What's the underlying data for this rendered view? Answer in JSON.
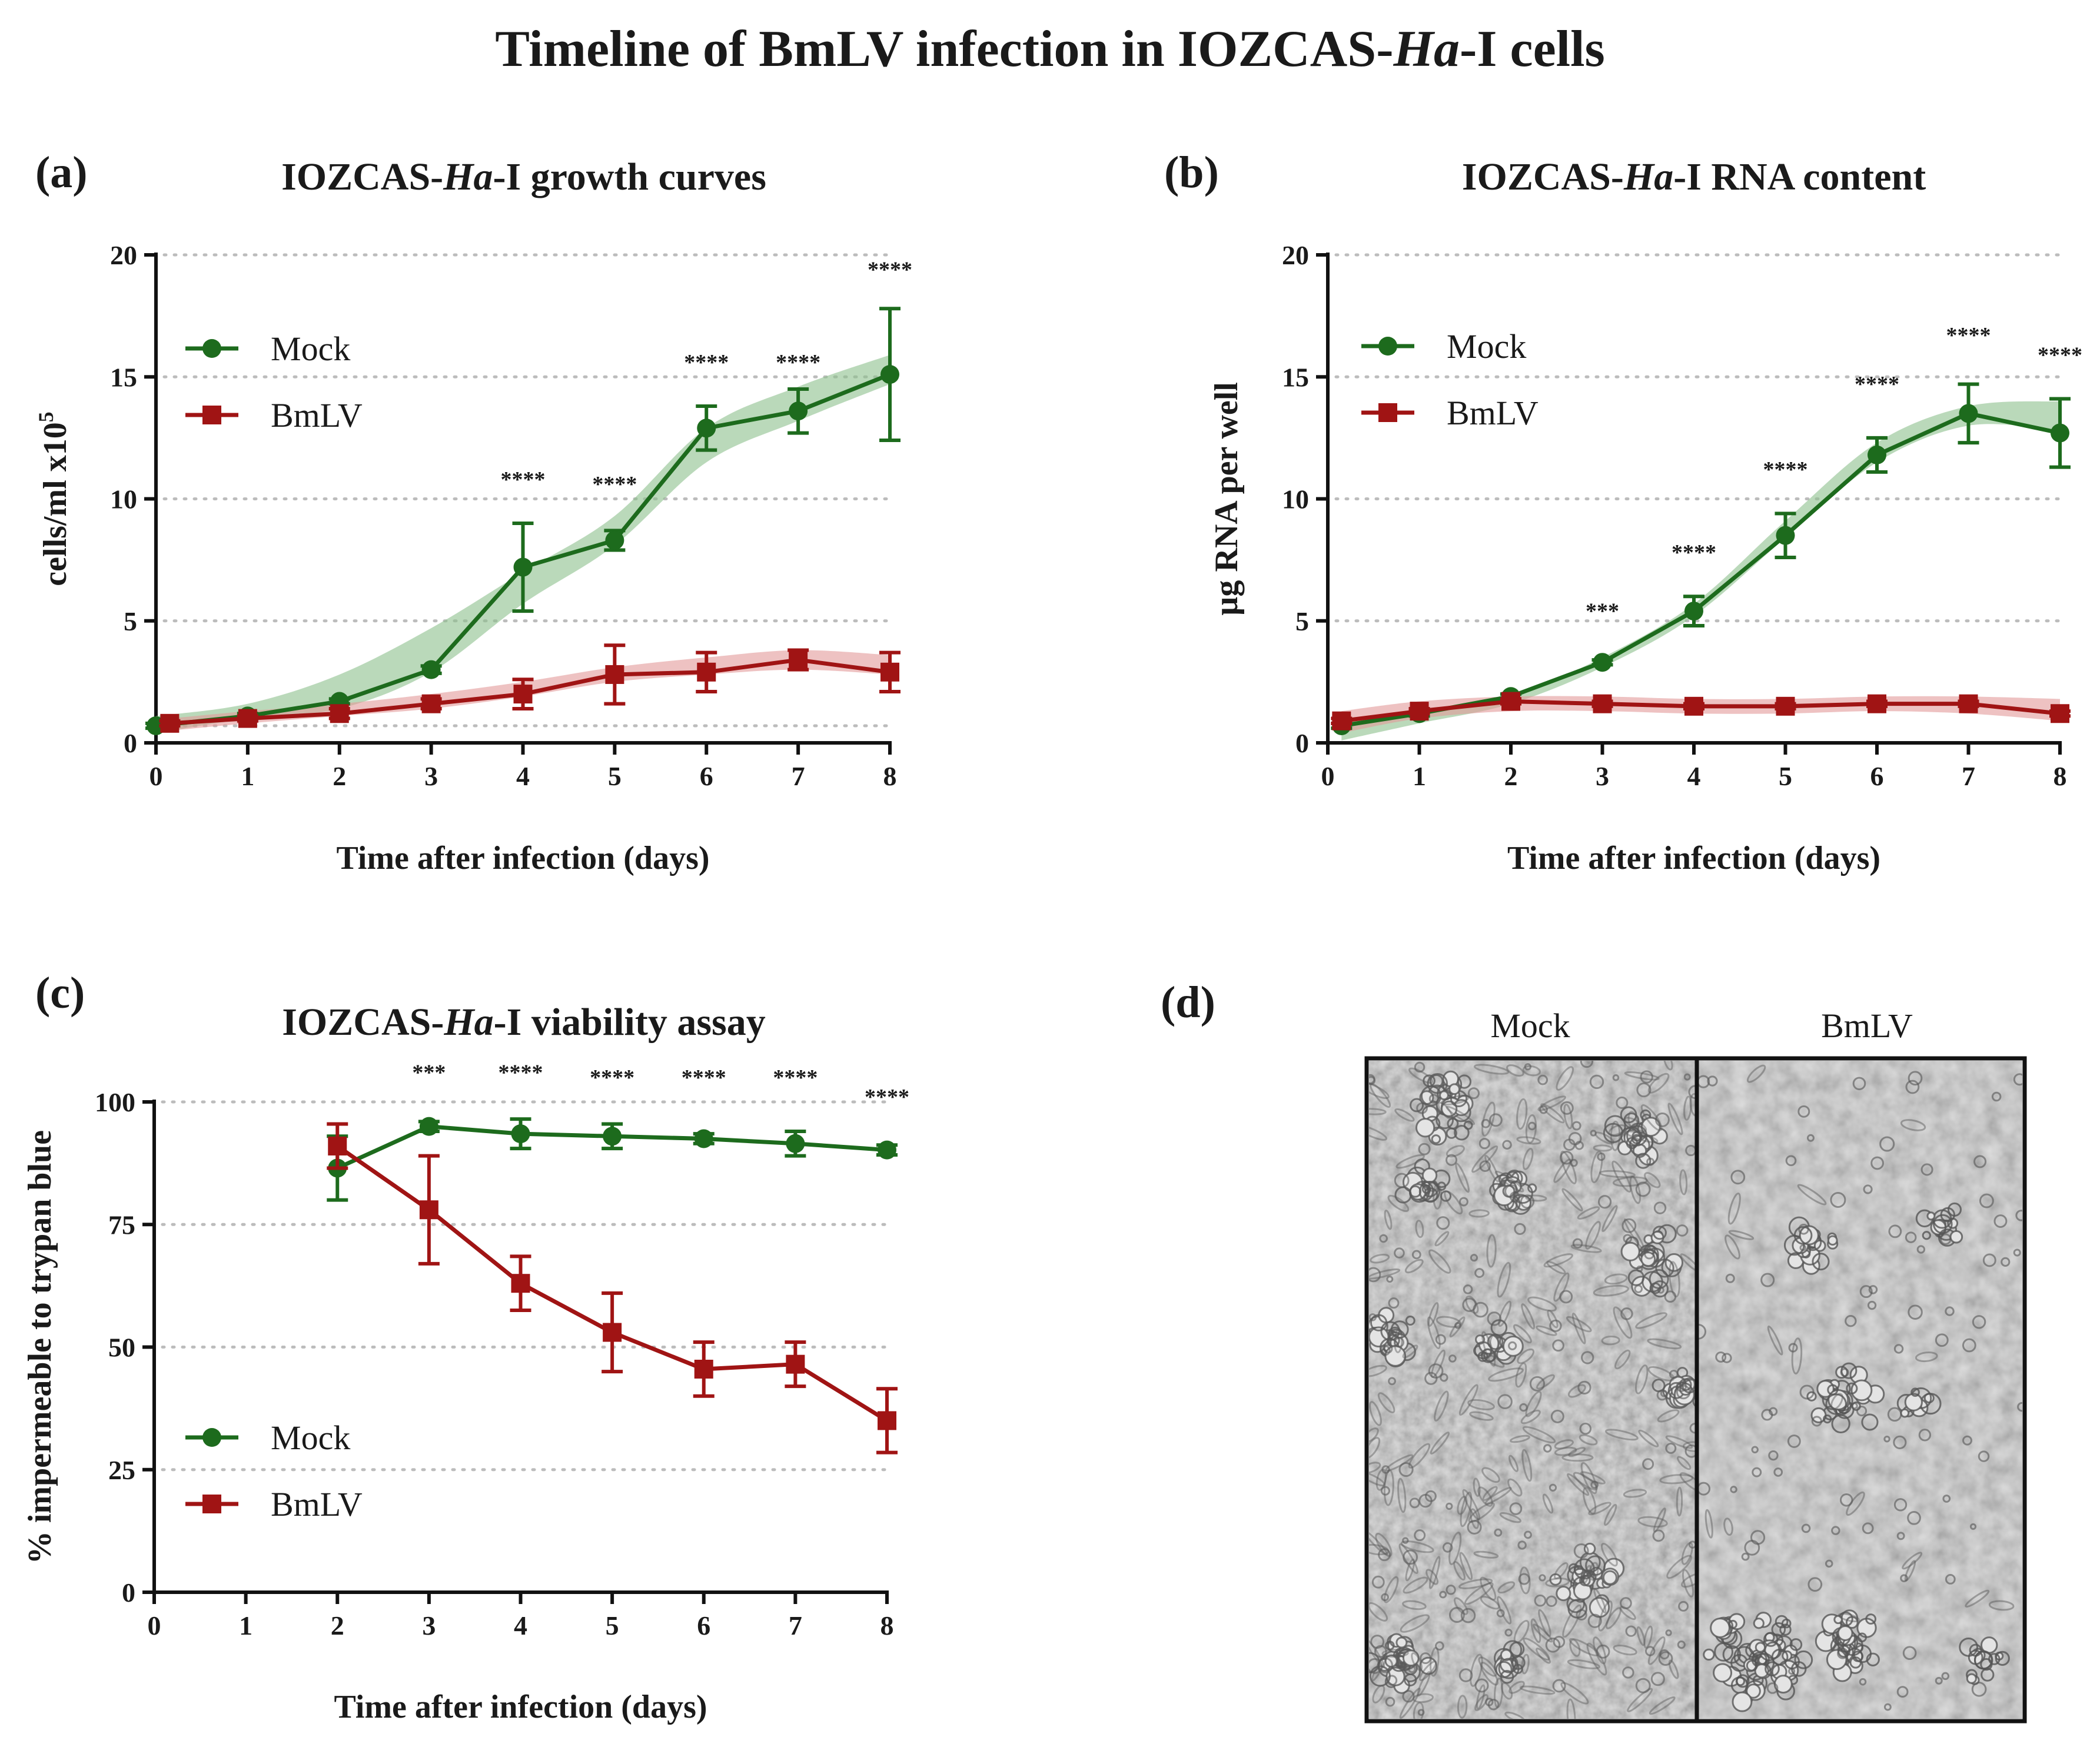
{
  "figure_title": {
    "prefix": "Timeline of BmLV infection in IOZCAS-",
    "italic": "Ha",
    "suffix": "-I cells"
  },
  "colors": {
    "mock": "#1d6b1d",
    "bmlv": "#a01414",
    "mock_band": "#8cc08c",
    "bmlv_band": "#e29a9a",
    "axis": "#111111",
    "grid": "#bcbcbc"
  },
  "micrographs": {
    "letter": "(d)",
    "labels": [
      "Mock",
      "BmLV"
    ]
  },
  "chart_data": [
    {
      "type": "line",
      "letter": "(a)",
      "title": {
        "prefix": "IOZCAS-",
        "italic": "Ha",
        "suffix": "-I growth curves"
      },
      "xlabel": "Time after infection (days)",
      "ylabel": {
        "base": "cells/ml x10",
        "sup": "5"
      },
      "xlim": [
        0,
        8
      ],
      "ylim": [
        0,
        20
      ],
      "xticks": [
        "0",
        "1",
        "2",
        "3",
        "4",
        "5",
        "6",
        "7",
        "8"
      ],
      "yticks": [
        "0",
        "5",
        "10",
        "15",
        "20"
      ],
      "grid_lines": [
        0.7,
        5,
        10,
        15,
        20
      ],
      "legend": {
        "position": "top-left",
        "entries": [
          "Mock",
          "BmLV"
        ]
      },
      "series": [
        {
          "name": "Mock",
          "marker": "circle",
          "x": [
            0,
            1,
            2,
            3,
            4,
            5,
            6,
            7,
            8
          ],
          "y": [
            0.7,
            1.1,
            1.7,
            3.0,
            7.2,
            8.3,
            12.9,
            13.6,
            15.1
          ],
          "err": [
            0.1,
            0.1,
            0.1,
            0.15,
            1.8,
            0.4,
            0.9,
            0.9,
            2.7
          ],
          "band_lower": [
            0.4,
            1.0,
            1.4,
            2.9,
            5.7,
            8.1,
            11.5,
            13.2,
            14.7
          ],
          "band_upper": [
            1.1,
            1.6,
            2.8,
            4.7,
            7.0,
            9.3,
            12.9,
            14.6,
            15.9
          ]
        },
        {
          "name": "BmLV",
          "marker": "square",
          "x": [
            0.15,
            1,
            2,
            3,
            4,
            5,
            6,
            7,
            8
          ],
          "y": [
            0.8,
            1.0,
            1.2,
            1.6,
            2.0,
            2.8,
            2.9,
            3.4,
            2.9
          ],
          "err": [
            0.1,
            0.1,
            0.2,
            0.2,
            0.6,
            1.2,
            0.8,
            0.4,
            0.8
          ],
          "band_lower": [
            0.5,
            0.8,
            1.1,
            1.4,
            1.9,
            2.5,
            2.8,
            3.0,
            2.8
          ],
          "band_upper": [
            1.0,
            1.3,
            1.6,
            2.0,
            2.5,
            3.1,
            3.5,
            3.8,
            3.6
          ]
        }
      ],
      "significance": [
        {
          "x": 4,
          "y": 10.5,
          "label": "****"
        },
        {
          "x": 5,
          "y": 10.3,
          "label": "****"
        },
        {
          "x": 6,
          "y": 15.3,
          "label": "****"
        },
        {
          "x": 7,
          "y": 15.3,
          "label": "****"
        },
        {
          "x": 8,
          "y": 19.1,
          "label": "****"
        }
      ]
    },
    {
      "type": "line",
      "letter": "(b)",
      "title": {
        "prefix": "IOZCAS-",
        "italic": "Ha",
        "suffix": "-I RNA content"
      },
      "xlabel": "Time after infection (days)",
      "ylabel": {
        "base": "µg RNA per well",
        "sup": ""
      },
      "xlim": [
        0,
        8
      ],
      "ylim": [
        0,
        20
      ],
      "xticks": [
        "0",
        "1",
        "2",
        "3",
        "4",
        "5",
        "6",
        "7",
        "8"
      ],
      "yticks": [
        "0",
        "5",
        "10",
        "15",
        "20"
      ],
      "grid_lines": [
        5,
        10,
        15,
        20
      ],
      "legend": {
        "position": "top-left",
        "entries": [
          "Mock",
          "BmLV"
        ]
      },
      "series": [
        {
          "name": "Mock",
          "marker": "circle",
          "x": [
            0.15,
            1,
            2,
            3,
            4,
            5,
            6,
            7,
            8
          ],
          "y": [
            0.7,
            1.2,
            1.9,
            3.3,
            5.4,
            8.5,
            11.8,
            13.5,
            12.7
          ],
          "err": [
            0.1,
            0.1,
            0.1,
            0.1,
            0.6,
            0.9,
            0.7,
            1.2,
            1.4
          ],
          "band_lower": [
            0.1,
            0.8,
            1.6,
            3.1,
            5.2,
            8.4,
            11.5,
            13.0,
            12.8
          ],
          "band_upper": [
            0.8,
            1.3,
            1.9,
            3.5,
            5.7,
            9.1,
            12.3,
            13.8,
            14.0
          ]
        },
        {
          "name": "BmLV",
          "marker": "square",
          "x": [
            0.15,
            1,
            2,
            3,
            4,
            5,
            6,
            7,
            8
          ],
          "y": [
            0.9,
            1.3,
            1.7,
            1.6,
            1.5,
            1.5,
            1.6,
            1.6,
            1.2
          ],
          "err": [
            0.1,
            0.1,
            0.1,
            0.1,
            0.1,
            0.1,
            0.1,
            0.1,
            0.1
          ],
          "band_lower": [
            0.4,
            1.0,
            1.3,
            1.3,
            1.2,
            1.2,
            1.3,
            1.2,
            0.9
          ],
          "band_upper": [
            1.3,
            1.7,
            1.9,
            1.9,
            1.8,
            1.8,
            1.9,
            1.9,
            1.8
          ]
        }
      ],
      "significance": [
        {
          "x": 3,
          "y": 5.1,
          "label": "***"
        },
        {
          "x": 4,
          "y": 7.5,
          "label": "****"
        },
        {
          "x": 5,
          "y": 10.9,
          "label": "****"
        },
        {
          "x": 6,
          "y": 14.4,
          "label": "****"
        },
        {
          "x": 7,
          "y": 16.4,
          "label": "****"
        },
        {
          "x": 8,
          "y": 15.6,
          "label": "****"
        }
      ]
    },
    {
      "type": "line",
      "letter": "(c)",
      "title": {
        "prefix": "IOZCAS-",
        "italic": "Ha",
        "suffix": "-I viability assay"
      },
      "xlabel": "Time after infection (days)",
      "ylabel": {
        "base": "% impermeable to trypan blue",
        "sup": ""
      },
      "xlim": [
        0,
        8
      ],
      "ylim": [
        0,
        100
      ],
      "xticks": [
        "0",
        "1",
        "2",
        "3",
        "4",
        "5",
        "6",
        "7",
        "8"
      ],
      "yticks": [
        "0",
        "25",
        "50",
        "75",
        "100"
      ],
      "grid_lines": [
        25,
        50,
        75,
        100
      ],
      "legend": {
        "position": "bottom-left",
        "entries": [
          "Mock",
          "BmLV"
        ]
      },
      "series": [
        {
          "name": "Mock",
          "marker": "circle",
          "x": [
            2,
            3,
            4,
            5,
            6,
            7,
            8
          ],
          "y": [
            86.5,
            95,
            93.5,
            93,
            92.5,
            91.5,
            90.2
          ],
          "err": [
            6.5,
            1,
            3,
            2.5,
            1,
            2.5,
            1
          ],
          "band_lower": [],
          "band_upper": []
        },
        {
          "name": "BmLV",
          "marker": "square",
          "x": [
            2,
            3,
            4,
            5,
            6,
            7,
            8
          ],
          "y": [
            91,
            78,
            63,
            53,
            45.5,
            46.5,
            35
          ],
          "err": [
            4.5,
            11,
            5.5,
            8,
            5.5,
            4.5,
            6.5
          ],
          "band_lower": [],
          "band_upper": []
        }
      ],
      "significance": [
        {
          "x": 3,
          "y": 104.5,
          "label": "***"
        },
        {
          "x": 4,
          "y": 104.5,
          "label": "****"
        },
        {
          "x": 5,
          "y": 103.5,
          "label": "****"
        },
        {
          "x": 6,
          "y": 103.5,
          "label": "****"
        },
        {
          "x": 7,
          "y": 103.5,
          "label": "****"
        },
        {
          "x": 8,
          "y": 99.5,
          "label": "****"
        }
      ]
    }
  ]
}
